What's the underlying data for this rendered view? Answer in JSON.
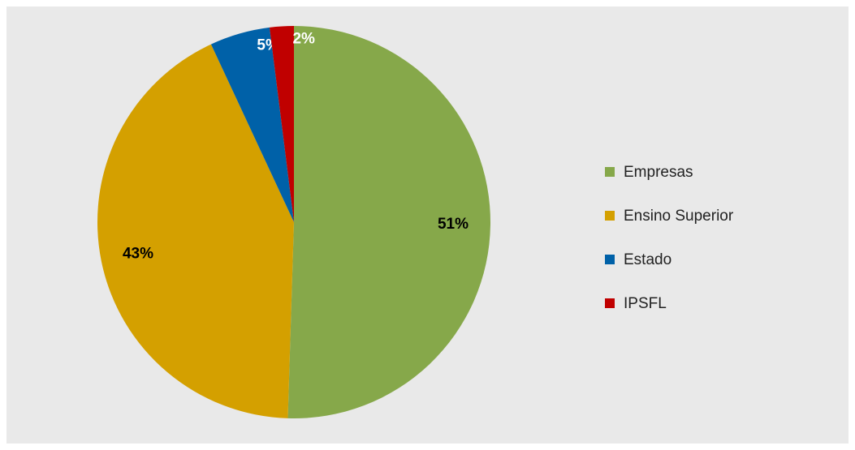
{
  "chart_data": {
    "type": "pie",
    "categories": [
      "Empresas",
      "Ensino Superior",
      "Estado",
      "IPSFL"
    ],
    "values": [
      51,
      43,
      5,
      2
    ],
    "value_labels": [
      "51%",
      "43%",
      "5%",
      "2%"
    ],
    "colors": [
      "#86a84a",
      "#d4a000",
      "#0061a8",
      "#c00000"
    ],
    "legend": "right"
  }
}
